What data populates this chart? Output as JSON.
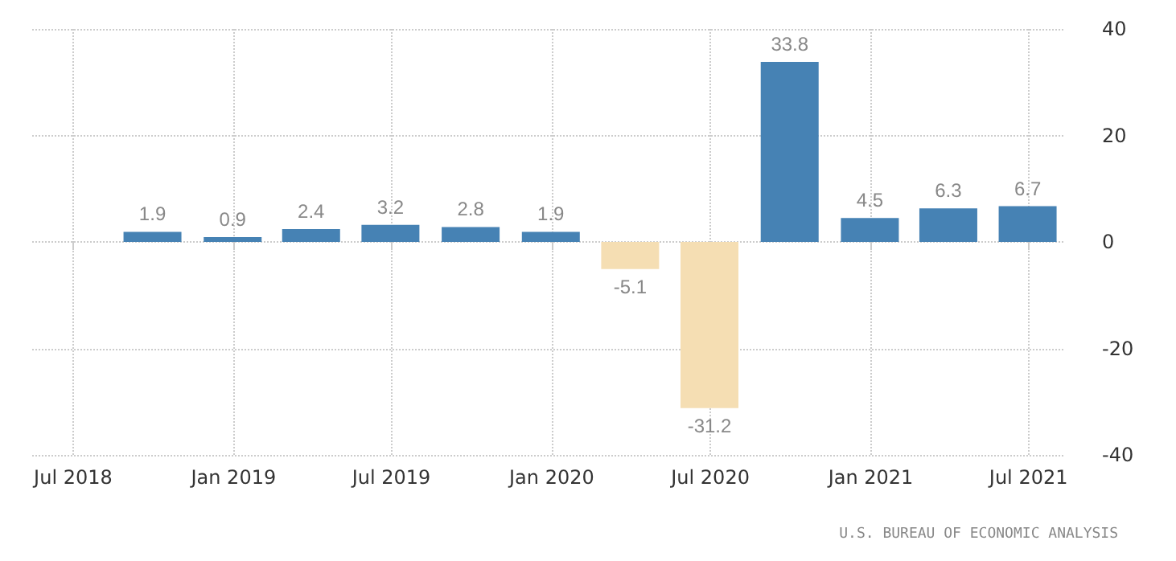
{
  "chart_data": {
    "type": "bar",
    "x": [
      "2018-09-30",
      "2018-12-31",
      "2019-03-31",
      "2019-06-30",
      "2019-09-30",
      "2019-12-31",
      "2020-03-31",
      "2020-06-30",
      "2020-09-30",
      "2020-12-31",
      "2021-03-31",
      "2021-06-30"
    ],
    "values": [
      1.9,
      0.9,
      2.4,
      3.2,
      2.8,
      1.9,
      -5.1,
      -31.2,
      33.8,
      4.5,
      6.3,
      6.7
    ],
    "colors": [
      "#4682b4",
      "#4682b4",
      "#4682b4",
      "#4682b4",
      "#4682b4",
      "#4682b4",
      "#f5deb3",
      "#f5deb3",
      "#4682b4",
      "#4682b4",
      "#4682b4",
      "#4682b4"
    ],
    "data_labels": true,
    "xlim": [
      "2018-05-15",
      "2021-08-10"
    ],
    "xticks": [
      {
        "value": "2018-07-01",
        "label": "Jul 2018"
      },
      {
        "value": "2019-01-01",
        "label": "Jan 2019"
      },
      {
        "value": "2019-07-01",
        "label": "Jul 2019"
      },
      {
        "value": "2020-01-01",
        "label": "Jan 2020"
      },
      {
        "value": "2020-07-01",
        "label": "Jul 2020"
      },
      {
        "value": "2021-01-01",
        "label": "Jan 2021"
      },
      {
        "value": "2021-07-01",
        "label": "Jul 2021"
      }
    ],
    "ylim": [
      -40,
      40
    ],
    "yticks": [
      -40,
      -20,
      0,
      20,
      40
    ],
    "grid": true,
    "annotations": [
      "U.S. BUREAU OF ECONOMIC ANALYSIS"
    ]
  }
}
